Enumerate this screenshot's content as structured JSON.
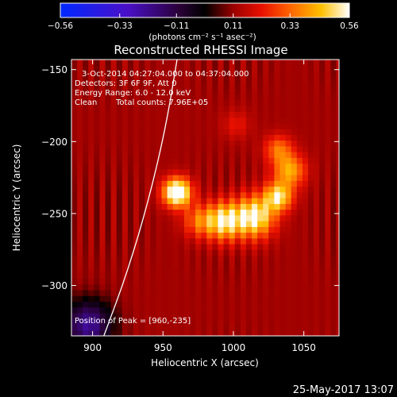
{
  "chart_data": {
    "type": "heatmap",
    "title": "Reconstructed RHESSI Image",
    "xlabel": "Heliocentric X (arcsec)",
    "ylabel": "Heliocentric Y (arcsec)",
    "xlim": [
      885,
      1075
    ],
    "ylim": [
      -335,
      -143
    ],
    "x_ticks": [
      {
        "value": 900,
        "label": "900"
      },
      {
        "value": 950,
        "label": "950"
      },
      {
        "value": 1000,
        "label": "1000"
      },
      {
        "value": 1050,
        "label": "1050"
      }
    ],
    "y_ticks": [
      {
        "value": -150,
        "label": "−150"
      },
      {
        "value": -200,
        "label": "−200"
      },
      {
        "value": -250,
        "label": "−250"
      },
      {
        "value": -300,
        "label": "−300"
      }
    ],
    "colorbar": {
      "min": -0.56,
      "max": 0.56,
      "ticks": [
        {
          "value": -0.56,
          "label": "−0.56"
        },
        {
          "value": -0.33,
          "label": "−0.33"
        },
        {
          "value": -0.11,
          "label": "−0.11"
        },
        {
          "value": 0.11,
          "label": "0.11"
        },
        {
          "value": 0.33,
          "label": "0.33"
        },
        {
          "value": 0.56,
          "label": "0.56"
        }
      ],
      "unit_label": "(photons cm⁻² s⁻¹ asec⁻²)",
      "stops": [
        {
          "value": -0.56,
          "color": "#0028ff"
        },
        {
          "value": -0.3,
          "color": "#4a10c8"
        },
        {
          "value": -0.1,
          "color": "#2a0038"
        },
        {
          "value": 0.0,
          "color": "#000000"
        },
        {
          "value": 0.11,
          "color": "#9a0000"
        },
        {
          "value": 0.22,
          "color": "#e81000"
        },
        {
          "value": 0.33,
          "color": "#ff6400"
        },
        {
          "value": 0.45,
          "color": "#ffc000"
        },
        {
          "value": 0.56,
          "color": "#ffffff"
        }
      ]
    },
    "background_level": 0.12,
    "sources": [
      {
        "x": 960,
        "y": -235,
        "peak": 0.56,
        "sigma": 7
      },
      {
        "x": 1015,
        "y": -252,
        "peak": 0.44,
        "sigma": 10
      },
      {
        "x": 993,
        "y": -255,
        "peak": 0.4,
        "sigma": 9
      },
      {
        "x": 1032,
        "y": -238,
        "peak": 0.38,
        "sigma": 7
      },
      {
        "x": 1040,
        "y": -220,
        "peak": 0.3,
        "sigma": 8
      },
      {
        "x": 1032,
        "y": -205,
        "peak": 0.22,
        "sigma": 7
      },
      {
        "x": 975,
        "y": -255,
        "peak": 0.2,
        "sigma": 8
      },
      {
        "x": 1002,
        "y": -188,
        "peak": 0.1,
        "sigma": 7
      }
    ],
    "negative_region": {
      "x": 897,
      "y": -327,
      "depth": -0.35,
      "sigma": 12
    },
    "limb_curve": [
      {
        "x": 908,
        "y": -335
      },
      {
        "x": 925,
        "y": -290
      },
      {
        "x": 940,
        "y": -240
      },
      {
        "x": 952,
        "y": -190
      },
      {
        "x": 960,
        "y": -143
      }
    ],
    "annotations": {
      "time_range": "3-Oct-2014 04:27:04.000 to 04:37:04.000",
      "detectors": "Detectors: 3F 6F 9F, Att 0",
      "energy_range": "Energy Range: 6.0 - 12.0 keV",
      "clean_label": "Clean",
      "total_counts": "Total counts: 7.96E+05",
      "peak_position": "Position of Peak = [960,-235]"
    },
    "footer_date": "25-May-2017 13:07"
  }
}
